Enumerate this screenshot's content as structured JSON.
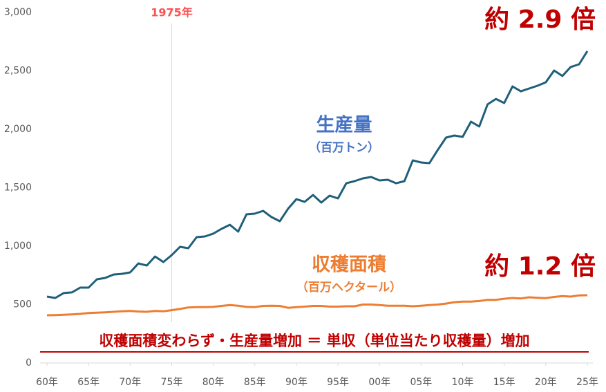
{
  "chart_data": {
    "type": "line",
    "x": [
      1960,
      1961,
      1962,
      1963,
      1964,
      1965,
      1966,
      1967,
      1968,
      1969,
      1970,
      1971,
      1972,
      1973,
      1974,
      1975,
      1976,
      1977,
      1978,
      1979,
      1980,
      1981,
      1982,
      1983,
      1984,
      1985,
      1986,
      1987,
      1988,
      1989,
      1990,
      1991,
      1992,
      1993,
      1994,
      1995,
      1996,
      1997,
      1998,
      1999,
      2000,
      2001,
      2002,
      2003,
      2004,
      2005,
      2006,
      2007,
      2008,
      2009,
      2010,
      2011,
      2012,
      2013,
      2014,
      2015,
      2016,
      2017,
      2018,
      2019,
      2020,
      2021,
      2022,
      2023,
      2024,
      2025
    ],
    "xlim": [
      1960,
      2025
    ],
    "xticks": [
      {
        "value": 1960,
        "label": "60年"
      },
      {
        "value": 1965,
        "label": "65年"
      },
      {
        "value": 1970,
        "label": "70年"
      },
      {
        "value": 1975,
        "label": "75年"
      },
      {
        "value": 1980,
        "label": "80年"
      },
      {
        "value": 1985,
        "label": "85年"
      },
      {
        "value": 1990,
        "label": "90年"
      },
      {
        "value": 1995,
        "label": "95年"
      },
      {
        "value": 2000,
        "label": "00年"
      },
      {
        "value": 2005,
        "label": "05年"
      },
      {
        "value": 2010,
        "label": "10年"
      },
      {
        "value": 2015,
        "label": "15年"
      },
      {
        "value": 2020,
        "label": "20年"
      },
      {
        "value": 2025,
        "label": "25年"
      }
    ],
    "ylim": [
      0,
      3000
    ],
    "yticks": [
      0,
      500,
      {
        "value": 1000,
        "label": "1,000"
      },
      {
        "value": 1500,
        "label": "1,500"
      },
      {
        "value": 2000,
        "label": "2,000"
      },
      {
        "value": 2500,
        "label": "2,500"
      },
      {
        "value": 3000,
        "label": "3,000"
      }
    ],
    "grid": false,
    "series": [
      {
        "name": "生産量",
        "unit": "（百万トン）",
        "color": "#1f5f7a",
        "label_color": "#4472c4",
        "callout": "約 2.9 倍",
        "values": [
          568,
          556,
          598,
          604,
          645,
          645,
          716,
          728,
          757,
          763,
          775,
          852,
          834,
          911,
          864,
          923,
          994,
          982,
          1077,
          1083,
          1107,
          1148,
          1183,
          1124,
          1272,
          1278,
          1302,
          1249,
          1213,
          1320,
          1402,
          1379,
          1438,
          1373,
          1432,
          1408,
          1538,
          1556,
          1580,
          1592,
          1562,
          1568,
          1538,
          1556,
          1734,
          1716,
          1710,
          1822,
          1929,
          1947,
          1935,
          2065,
          2024,
          2213,
          2260,
          2225,
          2367,
          2325,
          2349,
          2373,
          2402,
          2503,
          2456,
          2533,
          2556,
          2669
        ]
      },
      {
        "name": "収穫面積",
        "unit": "（百万ヘクタール）",
        "color": "#ed7d31",
        "label_color": "#ed7d31",
        "callout": "約 1.2 倍",
        "values": [
          408,
          410,
          413,
          416,
          420,
          428,
          430,
          434,
          438,
          442,
          445,
          440,
          438,
          445,
          442,
          452,
          462,
          475,
          478,
          478,
          480,
          488,
          495,
          490,
          480,
          478,
          488,
          490,
          488,
          472,
          478,
          482,
          488,
          488,
          482,
          482,
          485,
          485,
          500,
          500,
          495,
          490,
          490,
          490,
          485,
          490,
          495,
          500,
          508,
          520,
          525,
          525,
          530,
          540,
          540,
          550,
          556,
          552,
          562,
          558,
          555,
          565,
          572,
          568,
          578,
          580
        ]
      }
    ],
    "reference_line": {
      "x": 1975,
      "label": "1975年"
    },
    "summary": "収穫面積変わらず・生産量増加 ＝ 単収（単位当たり収穫量）増加"
  }
}
